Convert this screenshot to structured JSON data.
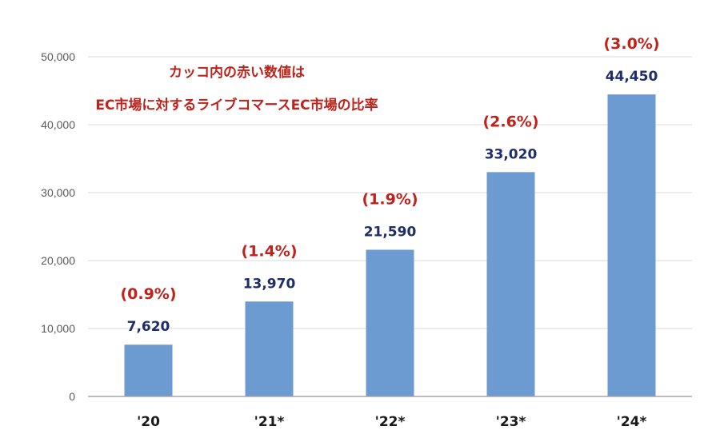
{
  "chart_data": {
    "type": "bar",
    "categories": [
      "'20",
      "'21*",
      "'22*",
      "'23*",
      "'24*"
    ],
    "values": [
      7620,
      13970,
      21590,
      33020,
      44450
    ],
    "value_labels": [
      "7,620",
      "13,970",
      "21,590",
      "33,020",
      "44,450"
    ],
    "ratio_labels": [
      "(0.9%)",
      "(1.4%)",
      "(1.9%)",
      "(2.6%)",
      "(3.0%)"
    ],
    "ylim": [
      0,
      50000
    ],
    "yticks": [
      0,
      10000,
      20000,
      30000,
      40000,
      50000
    ],
    "ytick_labels": [
      "0",
      "10,000",
      "20,000",
      "30,000",
      "40,000",
      "50,000"
    ],
    "grid": true,
    "legend": "none",
    "annotation_lines": [
      "カッコ内の赤い数値は",
      "EC市場に対するライブコマースEC市場の比率"
    ],
    "colors": {
      "bar": "#6b9bd1",
      "value_label": "#1f2d6b",
      "ratio_label": "#c0221b",
      "annotation": "#c0221b",
      "grid": "#d9d9d9",
      "axis": "#a6a6a6"
    }
  }
}
